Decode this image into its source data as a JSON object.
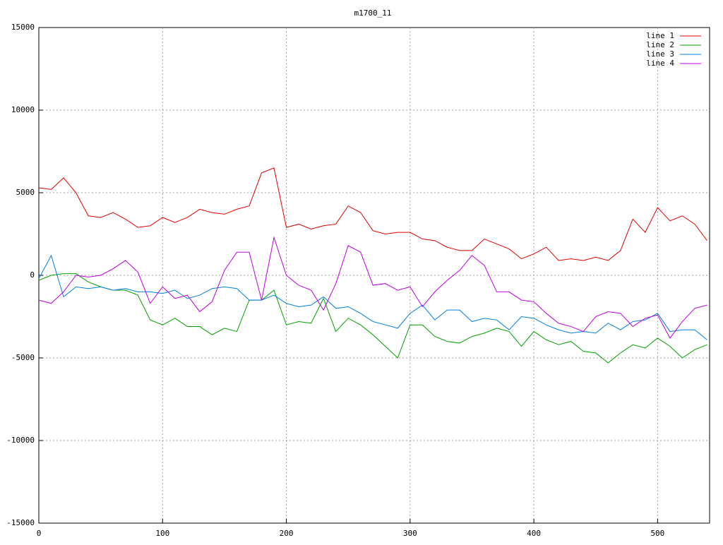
{
  "chart_data": {
    "type": "line",
    "title": "m1700_11",
    "x": [
      0,
      10,
      20,
      30,
      40,
      50,
      60,
      70,
      80,
      90,
      100,
      110,
      120,
      130,
      140,
      150,
      160,
      170,
      180,
      190,
      200,
      210,
      220,
      230,
      240,
      250,
      260,
      270,
      280,
      290,
      300,
      310,
      320,
      330,
      340,
      350,
      360,
      370,
      380,
      390,
      400,
      410,
      420,
      430,
      440,
      450,
      460,
      470,
      480,
      490,
      500,
      510,
      520,
      530,
      540
    ],
    "series": [
      {
        "name": "line 1",
        "color": "#e00000",
        "values": [
          5300,
          5200,
          5900,
          5000,
          3600,
          3500,
          3800,
          3400,
          2900,
          3000,
          3500,
          3200,
          3500,
          4000,
          3800,
          3700,
          4000,
          4200,
          6200,
          6500,
          2900,
          3100,
          2800,
          3000,
          3100,
          4200,
          3800,
          2700,
          2500,
          2600,
          2600,
          2200,
          2100,
          1700,
          1500,
          1500,
          2200,
          1900,
          1600,
          1000,
          1300,
          1700,
          900,
          1000,
          900,
          1100,
          900,
          1500,
          3400,
          2600,
          4100,
          3300,
          3600,
          3100,
          2100
        ]
      },
      {
        "name": "line 2",
        "color": "#00a000",
        "values": [
          -300,
          0,
          100,
          100,
          -400,
          -700,
          -900,
          -900,
          -1200,
          -2700,
          -3000,
          -2600,
          -3100,
          -3100,
          -3600,
          -3200,
          -3400,
          -1500,
          -1500,
          -900,
          -3000,
          -2800,
          -2900,
          -1400,
          -3400,
          -2600,
          -3000,
          -3600,
          -4300,
          -5000,
          -3000,
          -3000,
          -3700,
          -4000,
          -4100,
          -3700,
          -3500,
          -3200,
          -3400,
          -4300,
          -3400,
          -3900,
          -4200,
          -4000,
          -4600,
          -4700,
          -5300,
          -4700,
          -4200,
          -4400,
          -3800,
          -4300,
          -5000,
          -4500,
          -4200
        ]
      },
      {
        "name": "line 3",
        "color": "#0080e0",
        "values": [
          -200,
          1200,
          -1300,
          -700,
          -800,
          -700,
          -900,
          -800,
          -1000,
          -1000,
          -1100,
          -900,
          -1400,
          -1200,
          -800,
          -700,
          -800,
          -1500,
          -1500,
          -1200,
          -1700,
          -1900,
          -1800,
          -1300,
          -2000,
          -1900,
          -2300,
          -2800,
          -3000,
          -3200,
          -2300,
          -1800,
          -2700,
          -2100,
          -2100,
          -2800,
          -2600,
          -2700,
          -3300,
          -2500,
          -2600,
          -3000,
          -3300,
          -3500,
          -3400,
          -3500,
          -2900,
          -3300,
          -2800,
          -2700,
          -2300,
          -3400,
          -3300,
          -3300,
          -3900
        ]
      },
      {
        "name": "line 4",
        "color": "#c000e0",
        "values": [
          -1500,
          -1700,
          -1000,
          0,
          -100,
          0,
          400,
          900,
          200,
          -1700,
          -700,
          -1400,
          -1200,
          -2200,
          -1600,
          300,
          1400,
          1400,
          -1500,
          2300,
          0,
          -600,
          -900,
          -2100,
          -500,
          1800,
          1400,
          -600,
          -500,
          -900,
          -700,
          -1900,
          -1000,
          -300,
          300,
          1200,
          600,
          -1000,
          -1000,
          -1500,
          -1600,
          -2300,
          -2900,
          -3100,
          -3400,
          -2500,
          -2200,
          -2300,
          -3100,
          -2600,
          -2400,
          -3800,
          -2800,
          -2000,
          -1800
        ]
      }
    ],
    "xlim": [
      0,
      542
    ],
    "ylim": [
      -15000,
      15000
    ],
    "xticks": [
      0,
      100,
      200,
      300,
      400,
      500
    ],
    "yticks": [
      -15000,
      -10000,
      -5000,
      0,
      5000,
      10000,
      15000
    ],
    "grid": true,
    "legend": "top-right"
  }
}
